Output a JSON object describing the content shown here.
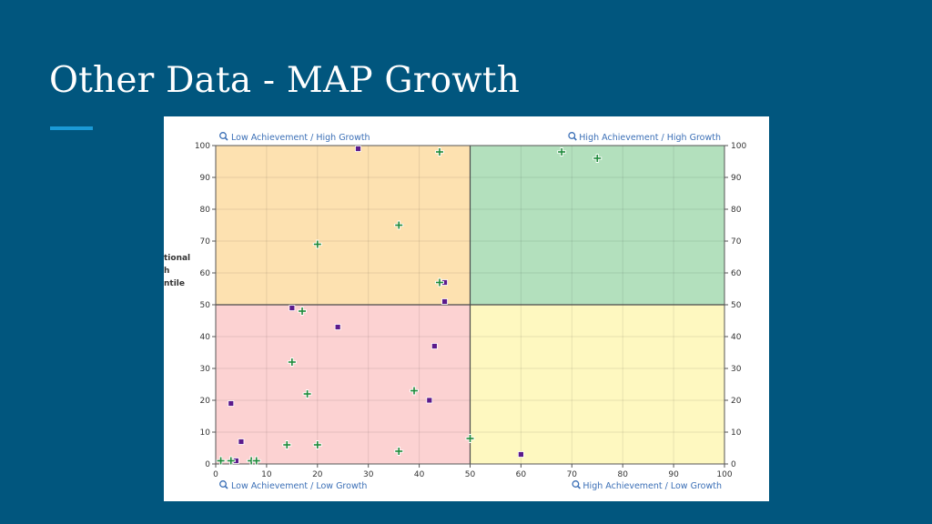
{
  "slide": {
    "title": "Other Data - MAP Growth"
  },
  "chart_data": {
    "type": "scatter",
    "xlim": [
      0,
      100
    ],
    "ylim": [
      0,
      100
    ],
    "x_ticks": [
      0,
      10,
      20,
      30,
      40,
      50,
      60,
      70,
      80,
      90,
      100
    ],
    "y_ticks": [
      0,
      10,
      20,
      30,
      40,
      50,
      60,
      70,
      80,
      90,
      100
    ],
    "grid": true,
    "ylabel_fragments": [
      "tional",
      "h",
      "ntile"
    ],
    "divider": {
      "x": 50,
      "y": 50
    },
    "quadrants": [
      {
        "label": "Low Achievement / High Growth",
        "color": "#fde1b0",
        "x": [
          0,
          50
        ],
        "y": [
          50,
          100
        ],
        "label_position": "top-left"
      },
      {
        "label": "High Achievement / High Growth",
        "color": "#b3e0bd",
        "x": [
          50,
          100
        ],
        "y": [
          50,
          100
        ],
        "label_position": "top-right"
      },
      {
        "label": "Low Achievement / Low Growth",
        "color": "#fcd2d2",
        "x": [
          0,
          50
        ],
        "y": [
          0,
          50
        ],
        "label_position": "bottom-left"
      },
      {
        "label": "High Achievement / Low Growth",
        "color": "#fef8c0",
        "x": [
          50,
          100
        ],
        "y": [
          0,
          50
        ],
        "label_position": "bottom-right"
      }
    ],
    "series": [
      {
        "marker": "square",
        "color": "#5b1a8c",
        "points": [
          [
            28,
            99
          ],
          [
            45,
            57
          ],
          [
            45,
            51
          ],
          [
            15,
            49
          ],
          [
            24,
            43
          ],
          [
            43,
            37
          ],
          [
            3,
            19
          ],
          [
            42,
            20
          ],
          [
            5,
            7
          ],
          [
            4,
            1
          ],
          [
            60,
            3
          ]
        ]
      },
      {
        "marker": "plus",
        "color": "#1f8a3b",
        "points": [
          [
            44,
            98
          ],
          [
            68,
            98
          ],
          [
            75,
            96
          ],
          [
            36,
            75
          ],
          [
            20,
            69
          ],
          [
            44,
            57
          ],
          [
            17,
            48
          ],
          [
            15,
            32
          ],
          [
            18,
            22
          ],
          [
            39,
            23
          ],
          [
            14,
            6
          ],
          [
            20,
            6
          ],
          [
            36,
            4
          ],
          [
            50,
            8
          ],
          [
            1,
            1
          ],
          [
            3,
            1
          ],
          [
            7,
            1
          ],
          [
            8,
            1
          ]
        ]
      }
    ]
  }
}
